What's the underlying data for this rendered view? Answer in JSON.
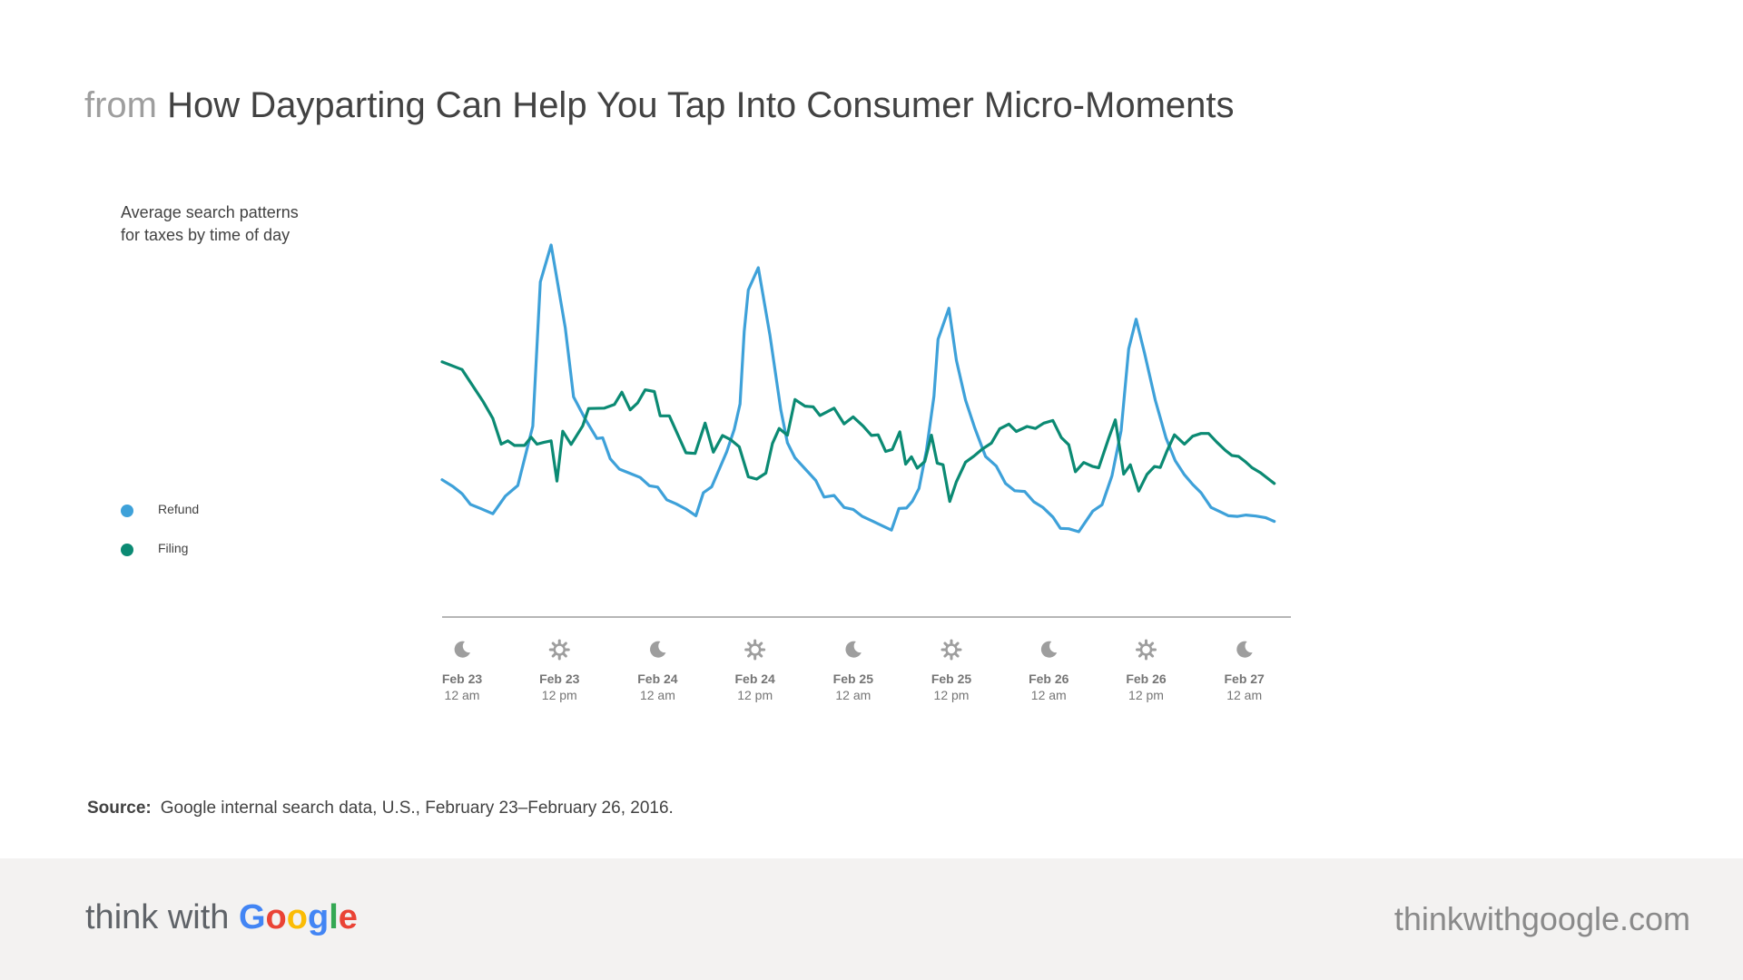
{
  "header": {
    "prefix": "from",
    "title": "How Dayparting Can Help You Tap Into Consumer Micro-Moments"
  },
  "subtitle": {
    "line1": "Average search patterns",
    "line2": "for taxes by time of day"
  },
  "legend": [
    {
      "label": "Refund",
      "color": "#3ea1d9"
    },
    {
      "label": "Filing",
      "color": "#0b8a73"
    }
  ],
  "source": {
    "label": "Source:",
    "text": "Google internal search data, U.S., February 23–February 26, 2016."
  },
  "footer": {
    "brand_think": "think with",
    "brand_google_letters": [
      {
        "ch": "G",
        "color": "#4285f4"
      },
      {
        "ch": "o",
        "color": "#ea4335"
      },
      {
        "ch": "o",
        "color": "#fbbc05"
      },
      {
        "ch": "g",
        "color": "#4285f4"
      },
      {
        "ch": "l",
        "color": "#34a853"
      },
      {
        "ch": "e",
        "color": "#ea4335"
      }
    ],
    "url": "thinkwithgoogle.com"
  },
  "chart_data": {
    "type": "line",
    "title": "Average search patterns for taxes by time of day",
    "xlabel": "",
    "ylabel": "",
    "xlim": [
      0,
      102
    ],
    "ylim": [
      0,
      100
    ],
    "grid": false,
    "legend_position": "left",
    "ticks": [
      {
        "x": 2.4,
        "date": "Feb 23",
        "time": "12 am",
        "icon": "moon-icon"
      },
      {
        "x": 14.1,
        "date": "Feb 23",
        "time": "12 pm",
        "icon": "sun-icon"
      },
      {
        "x": 25.9,
        "date": "Feb 24",
        "time": "12 am",
        "icon": "moon-icon"
      },
      {
        "x": 37.6,
        "date": "Feb 24",
        "time": "12 pm",
        "icon": "sun-icon"
      },
      {
        "x": 49.4,
        "date": "Feb 25",
        "time": "12 am",
        "icon": "moon-icon"
      },
      {
        "x": 61.2,
        "date": "Feb 25",
        "time": "12 pm",
        "icon": "sun-icon"
      },
      {
        "x": 72.9,
        "date": "Feb 26",
        "time": "12 am",
        "icon": "moon-icon"
      },
      {
        "x": 84.6,
        "date": "Feb 26",
        "time": "12 pm",
        "icon": "sun-icon"
      },
      {
        "x": 96.4,
        "date": "Feb 27",
        "time": "12 am",
        "icon": "moon-icon"
      }
    ],
    "series": [
      {
        "name": "Refund",
        "color": "#3ea1d9",
        "points": [
          [
            0,
            29.5
          ],
          [
            1.3,
            27.5
          ],
          [
            2.4,
            25.3
          ],
          [
            3.4,
            22.1
          ],
          [
            4.6,
            20.9
          ],
          [
            6.1,
            19.3
          ],
          [
            7.6,
            24.6
          ],
          [
            9.1,
            27.8
          ],
          [
            10.9,
            45.6
          ],
          [
            11.8,
            88.9
          ],
          [
            13.1,
            100.0
          ],
          [
            14.8,
            75.1
          ],
          [
            15.8,
            54.4
          ],
          [
            17.2,
            47.7
          ],
          [
            18.6,
            41.9
          ],
          [
            19.3,
            42.1
          ],
          [
            20.2,
            35.8
          ],
          [
            21.3,
            32.7
          ],
          [
            22.7,
            31.3
          ],
          [
            23.8,
            30.2
          ],
          [
            24.9,
            27.7
          ],
          [
            25.9,
            27.3
          ],
          [
            27.0,
            23.5
          ],
          [
            28.1,
            22.3
          ],
          [
            29.3,
            20.7
          ],
          [
            30.5,
            18.7
          ],
          [
            31.4,
            25.6
          ],
          [
            32.4,
            27.4
          ],
          [
            34.2,
            37.9
          ],
          [
            35.1,
            44.6
          ],
          [
            35.8,
            52.3
          ],
          [
            36.3,
            74.1
          ],
          [
            36.8,
            86.5
          ],
          [
            38.0,
            93.2
          ],
          [
            39.4,
            72.8
          ],
          [
            40.7,
            50.5
          ],
          [
            41.5,
            40.6
          ],
          [
            42.4,
            36.1
          ],
          [
            43.8,
            32.3
          ],
          [
            44.9,
            29.3
          ],
          [
            45.9,
            24.3
          ],
          [
            47.1,
            24.8
          ],
          [
            48.3,
            21.2
          ],
          [
            49.4,
            20.6
          ],
          [
            50.5,
            18.5
          ],
          [
            51.7,
            17.1
          ],
          [
            52.9,
            15.7
          ],
          [
            54.0,
            14.4
          ],
          [
            54.9,
            20.9
          ],
          [
            55.8,
            21.0
          ],
          [
            56.5,
            23.0
          ],
          [
            57.3,
            26.9
          ],
          [
            58.2,
            38.3
          ],
          [
            59.1,
            54.6
          ],
          [
            59.6,
            71.7
          ],
          [
            60.9,
            81.0
          ],
          [
            61.8,
            65.4
          ],
          [
            62.9,
            53.4
          ],
          [
            64.0,
            45.1
          ],
          [
            65.3,
            36.5
          ],
          [
            66.6,
            33.6
          ],
          [
            67.7,
            28.4
          ],
          [
            68.8,
            26.2
          ],
          [
            70.0,
            26.0
          ],
          [
            71.1,
            22.9
          ],
          [
            72.2,
            21.2
          ],
          [
            73.4,
            18.3
          ],
          [
            74.3,
            14.9
          ],
          [
            75.3,
            14.8
          ],
          [
            76.5,
            13.9
          ],
          [
            78.2,
            20.1
          ],
          [
            79.3,
            22.0
          ],
          [
            80.5,
            30.7
          ],
          [
            81.6,
            44.3
          ],
          [
            82.5,
            68.8
          ],
          [
            83.4,
            77.7
          ],
          [
            84.4,
            67.6
          ],
          [
            85.7,
            53.4
          ],
          [
            87.0,
            42.0
          ],
          [
            88.1,
            35.2
          ],
          [
            89.2,
            31.0
          ],
          [
            90.2,
            28.1
          ],
          [
            91.2,
            25.6
          ],
          [
            92.4,
            21.2
          ],
          [
            93.4,
            20.0
          ],
          [
            94.5,
            18.7
          ],
          [
            95.6,
            18.5
          ],
          [
            96.6,
            18.9
          ],
          [
            97.8,
            18.6
          ],
          [
            99.0,
            18.1
          ],
          [
            100.0,
            17.0
          ]
        ]
      },
      {
        "name": "Filing",
        "color": "#0b8a73",
        "points": [
          [
            0,
            64.9
          ],
          [
            2.4,
            62.6
          ],
          [
            4.9,
            53.1
          ],
          [
            6.1,
            47.9
          ],
          [
            7.1,
            40.2
          ],
          [
            7.9,
            41.2
          ],
          [
            8.7,
            39.8
          ],
          [
            9.9,
            39.8
          ],
          [
            10.7,
            42.3
          ],
          [
            11.4,
            40.2
          ],
          [
            12.2,
            40.7
          ],
          [
            13.1,
            41.2
          ],
          [
            13.8,
            29.1
          ],
          [
            14.5,
            44.1
          ],
          [
            15.5,
            40.1
          ],
          [
            16.9,
            45.7
          ],
          [
            17.6,
            50.9
          ],
          [
            19.5,
            51.0
          ],
          [
            20.7,
            52.1
          ],
          [
            21.6,
            55.8
          ],
          [
            22.6,
            50.5
          ],
          [
            23.5,
            52.6
          ],
          [
            24.4,
            56.5
          ],
          [
            25.5,
            56.0
          ],
          [
            26.2,
            48.7
          ],
          [
            27.3,
            48.7
          ],
          [
            29.3,
            37.6
          ],
          [
            30.4,
            37.4
          ],
          [
            31.6,
            46.5
          ],
          [
            32.6,
            37.8
          ],
          [
            33.7,
            42.8
          ],
          [
            34.7,
            41.5
          ],
          [
            35.7,
            39.4
          ],
          [
            36.8,
            30.4
          ],
          [
            37.8,
            29.7
          ],
          [
            38.9,
            31.5
          ],
          [
            39.7,
            40.4
          ],
          [
            40.5,
            44.9
          ],
          [
            41.5,
            42.9
          ],
          [
            42.4,
            53.6
          ],
          [
            43.6,
            51.6
          ],
          [
            44.6,
            51.4
          ],
          [
            45.4,
            48.8
          ],
          [
            47.1,
            51.0
          ],
          [
            48.3,
            46.3
          ],
          [
            49.4,
            48.4
          ],
          [
            50.6,
            45.6
          ],
          [
            51.6,
            42.8
          ],
          [
            52.4,
            43.0
          ],
          [
            53.3,
            38.0
          ],
          [
            54.1,
            38.6
          ],
          [
            55.0,
            43.9
          ],
          [
            55.7,
            34.2
          ],
          [
            56.4,
            36.4
          ],
          [
            57.1,
            33.0
          ],
          [
            58.0,
            35.0
          ],
          [
            58.8,
            42.9
          ],
          [
            59.5,
            34.5
          ],
          [
            60.2,
            34.0
          ],
          [
            61.0,
            23.0
          ],
          [
            61.8,
            28.9
          ],
          [
            62.9,
            34.8
          ],
          [
            63.9,
            36.6
          ],
          [
            64.9,
            38.7
          ],
          [
            66.0,
            40.5
          ],
          [
            67.0,
            44.8
          ],
          [
            68.1,
            46.2
          ],
          [
            69.0,
            44.0
          ],
          [
            70.3,
            45.5
          ],
          [
            71.3,
            44.9
          ],
          [
            72.3,
            46.5
          ],
          [
            73.4,
            47.3
          ],
          [
            74.4,
            42.2
          ],
          [
            75.3,
            40.0
          ],
          [
            76.1,
            31.9
          ],
          [
            77.1,
            34.7
          ],
          [
            78.2,
            33.5
          ],
          [
            78.9,
            33.1
          ],
          [
            80.1,
            42.0
          ],
          [
            80.9,
            47.5
          ],
          [
            81.9,
            31.2
          ],
          [
            82.7,
            34.0
          ],
          [
            83.7,
            26.1
          ],
          [
            84.7,
            31.1
          ],
          [
            85.6,
            33.5
          ],
          [
            86.3,
            33.2
          ],
          [
            87.1,
            38.1
          ],
          [
            88.0,
            43.0
          ],
          [
            89.2,
            40.2
          ],
          [
            90.2,
            42.6
          ],
          [
            91.2,
            43.4
          ],
          [
            92.1,
            43.4
          ],
          [
            93.1,
            40.8
          ],
          [
            94.1,
            38.4
          ],
          [
            94.9,
            36.8
          ],
          [
            95.7,
            36.5
          ],
          [
            96.5,
            35.0
          ],
          [
            97.3,
            33.2
          ],
          [
            98.3,
            31.7
          ],
          [
            100.0,
            28.4
          ]
        ]
      }
    ]
  }
}
